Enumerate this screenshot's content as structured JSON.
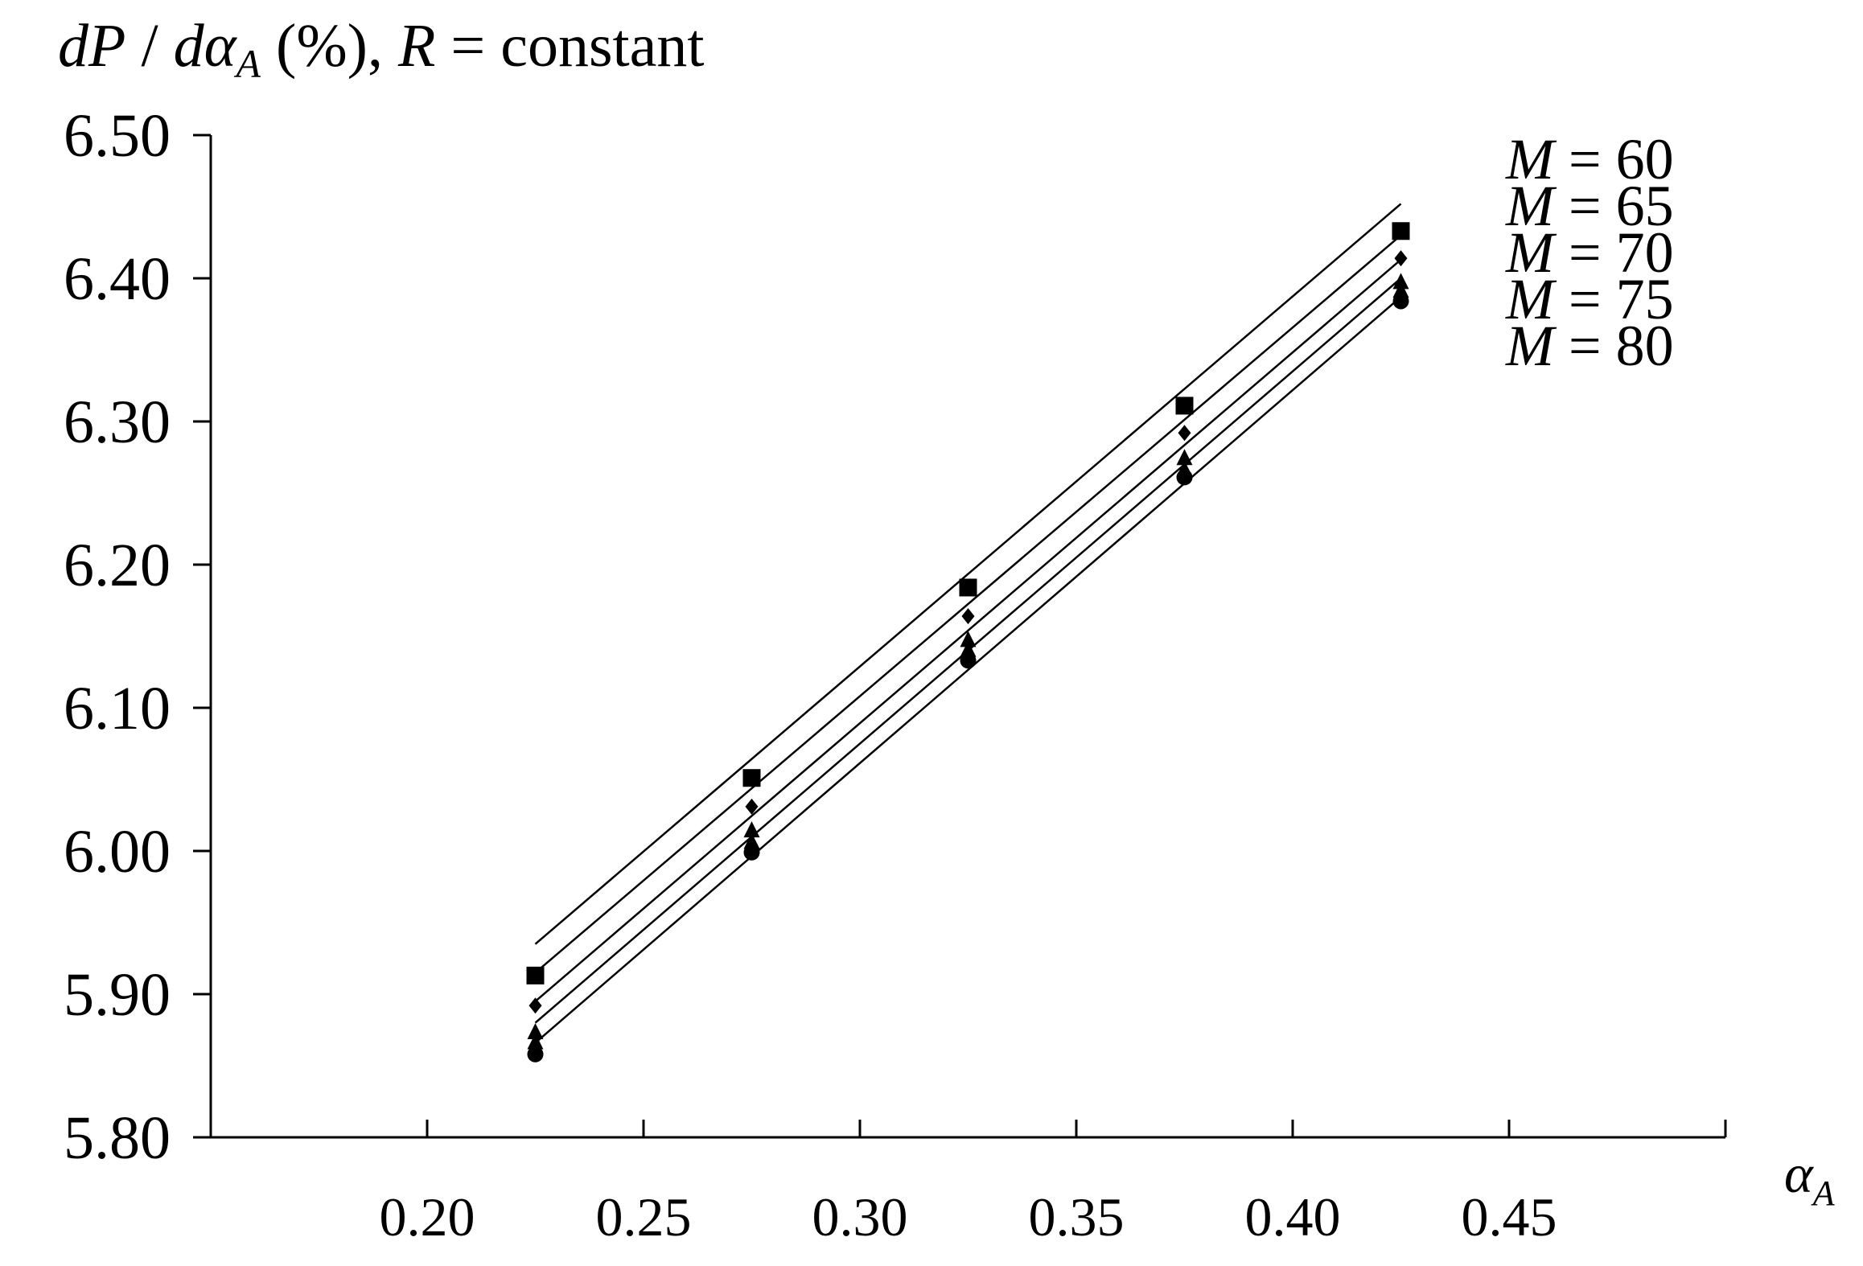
{
  "chart_data": {
    "type": "scatter",
    "title": "dP / dα_A (%), R = constant",
    "title_parts": {
      "dP": "dP",
      "slash": " / ",
      "d": "d",
      "alpha": "α",
      "sub_a": "A",
      "pct": " (%), ",
      "R": "R",
      "eq_const": " = constant"
    },
    "xlabel": "α_A",
    "xlabel_parts": {
      "alpha": "α",
      "sub_a": "A"
    },
    "ylabel": "dP / dα_A (%)",
    "xlim": [
      0.15,
      0.5
    ],
    "ylim": [
      5.8,
      6.5
    ],
    "x_ticks": [
      0.2,
      0.25,
      0.3,
      0.35,
      0.4,
      0.45
    ],
    "x_tick_labels": [
      "0.20",
      "0.25",
      "0.30",
      "0.35",
      "0.40",
      "0.45"
    ],
    "y_ticks": [
      5.8,
      5.9,
      6.0,
      6.1,
      6.2,
      6.3,
      6.4,
      6.5
    ],
    "y_tick_labels": [
      "5.80",
      "5.90",
      "6.00",
      "6.10",
      "6.20",
      "6.30",
      "6.40",
      "6.50"
    ],
    "grid": false,
    "legend_position": "top-right",
    "x": [
      0.225,
      0.275,
      0.325,
      0.375,
      0.425
    ],
    "series": [
      {
        "name": "M = 60",
        "label_m": "M",
        "label_rest": " = 60",
        "marker": "square",
        "values": [
          5.913,
          6.051,
          6.184,
          6.311,
          6.433
        ],
        "fit": [
          [
            0.225,
            5.935
          ],
          [
            0.425,
            6.452
          ]
        ]
      },
      {
        "name": "M = 65",
        "label_m": "M",
        "label_rest": " = 65",
        "marker": "diamond",
        "values": [
          5.892,
          6.031,
          6.164,
          6.292,
          6.414
        ],
        "fit": [
          [
            0.225,
            5.915
          ],
          [
            0.425,
            6.43
          ]
        ]
      },
      {
        "name": "M = 70",
        "label_m": "M",
        "label_rest": " = 70",
        "marker": "triangle",
        "values": [
          5.873,
          6.014,
          6.147,
          6.274,
          6.397
        ],
        "fit": [
          [
            0.225,
            5.895
          ],
          [
            0.425,
            6.413
          ]
        ]
      },
      {
        "name": "M = 75",
        "label_m": "M",
        "label_rest": " = 75",
        "marker": "triangle",
        "values": [
          5.866,
          6.006,
          6.14,
          6.266,
          6.391
        ],
        "fit": [
          [
            0.225,
            5.88
          ],
          [
            0.425,
            6.4
          ]
        ]
      },
      {
        "name": "M = 80",
        "label_m": "M",
        "label_rest": " = 80",
        "marker": "circle",
        "values": [
          5.858,
          5.999,
          6.133,
          6.261,
          6.384
        ],
        "fit": [
          [
            0.225,
            5.866
          ],
          [
            0.425,
            6.387
          ]
        ]
      }
    ]
  }
}
